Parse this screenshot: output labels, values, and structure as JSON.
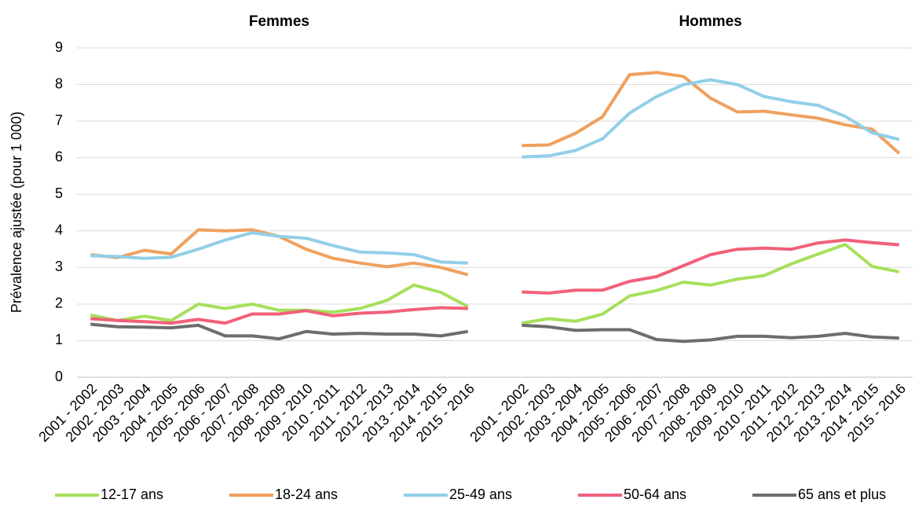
{
  "chart_data": {
    "type": "line",
    "y_label": "Prévalence ajustée (pour 1 000)",
    "group_labels": [
      "Femmes",
      "Hommes"
    ],
    "categories": [
      "2001 - 2002",
      "2002 - 2003",
      "2003 - 2004",
      "2004 - 2005",
      "2005 - 2006",
      "2006 - 2007",
      "2007 - 2008",
      "2008 - 2009",
      "2009 - 2010",
      "2010 - 2011",
      "2011 - 2012",
      "2012 - 2013",
      "2013 - 2014",
      "2014 - 2015",
      "2015 - 2016",
      null,
      "2001 - 2002",
      "2002 - 2003",
      "2003 - 2004",
      "2004 - 2005",
      "2005 - 2006",
      "2006 - 2007",
      "2007 - 2008",
      "2008 - 2009",
      "2009 - 2010",
      "2010 - 2011",
      "2011 - 2012",
      "2012 - 2013",
      "2013 - 2014",
      "2014 - 2015",
      "2015 - 2016"
    ],
    "series": [
      {
        "name": "12-17 ans",
        "color": "#a6e05a",
        "values": [
          1.7,
          1.55,
          1.67,
          1.55,
          2.0,
          1.88,
          2.0,
          1.83,
          1.83,
          1.78,
          1.88,
          2.1,
          2.52,
          2.32,
          1.93,
          null,
          1.48,
          1.6,
          1.53,
          1.73,
          2.22,
          2.37,
          2.6,
          2.52,
          2.68,
          2.78,
          3.1,
          3.37,
          3.63,
          3.03,
          2.88
        ]
      },
      {
        "name": "18-24 ans",
        "color": "#f0a05e",
        "values": [
          3.35,
          3.27,
          3.47,
          3.37,
          4.03,
          4.0,
          4.03,
          3.85,
          3.5,
          3.25,
          3.12,
          3.02,
          3.12,
          3.0,
          2.8,
          null,
          6.33,
          6.35,
          6.67,
          7.12,
          8.27,
          8.33,
          8.22,
          7.63,
          7.25,
          7.27,
          7.17,
          7.08,
          6.9,
          6.78,
          6.12
        ]
      },
      {
        "name": "25-49 ans",
        "color": "#92cfe8",
        "values": [
          3.32,
          3.3,
          3.25,
          3.28,
          3.5,
          3.75,
          3.95,
          3.85,
          3.8,
          3.6,
          3.42,
          3.4,
          3.35,
          3.15,
          3.12,
          null,
          6.02,
          6.05,
          6.2,
          6.52,
          7.22,
          7.67,
          8.0,
          8.13,
          8.0,
          7.67,
          7.53,
          7.43,
          7.13,
          6.68,
          6.5
        ]
      },
      {
        "name": "50-64 ans",
        "color": "#f2607a",
        "values": [
          1.6,
          1.55,
          1.52,
          1.48,
          1.58,
          1.48,
          1.73,
          1.73,
          1.82,
          1.68,
          1.75,
          1.78,
          1.85,
          1.9,
          1.88,
          null,
          2.33,
          2.3,
          2.38,
          2.38,
          2.62,
          2.75,
          3.05,
          3.35,
          3.5,
          3.53,
          3.5,
          3.67,
          3.75,
          3.68,
          3.62
        ]
      },
      {
        "name": "65 ans et plus",
        "color": "#6d6d6d",
        "values": [
          1.45,
          1.38,
          1.37,
          1.35,
          1.42,
          1.13,
          1.13,
          1.05,
          1.25,
          1.18,
          1.2,
          1.18,
          1.18,
          1.13,
          1.25,
          null,
          1.42,
          1.38,
          1.28,
          1.3,
          1.3,
          1.03,
          0.98,
          1.02,
          1.12,
          1.12,
          1.08,
          1.12,
          1.2,
          1.1,
          1.07
        ]
      }
    ],
    "ylim": [
      0,
      9
    ],
    "yticks": [
      0,
      1,
      2,
      3,
      4,
      5,
      6,
      7,
      8,
      9
    ],
    "grid": true
  }
}
